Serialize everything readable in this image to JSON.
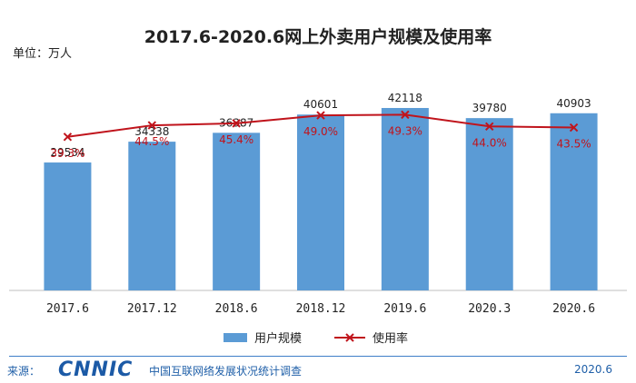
{
  "chart_data": {
    "type": "bar",
    "title": "2017.6-2020.6网上外卖用户规模及使用率",
    "unit_label": "单位：万人",
    "categories": [
      "2017.6",
      "2017.12",
      "2018.6",
      "2018.12",
      "2019.6",
      "2020.3",
      "2020.6"
    ],
    "series": [
      {
        "name": "用户规模",
        "type": "bar",
        "color": "#5b9bd5",
        "values": [
          29534,
          34338,
          36387,
          40601,
          42118,
          39780,
          40903
        ]
      },
      {
        "name": "使用率",
        "type": "line",
        "color": "#c0141c",
        "marker": "x",
        "values": [
          39.3,
          44.5,
          45.4,
          49.0,
          49.3,
          44.0,
          43.5
        ],
        "labels": [
          "39.3%",
          "44.5%",
          "45.4%",
          "49.0%",
          "49.3%",
          "44.0%",
          "43.5%"
        ]
      }
    ],
    "bar_ylim": [
      0,
      44000
    ],
    "line_ylim": [
      -30,
      56
    ],
    "legend_position": "bottom",
    "grid": false
  },
  "footer": {
    "source_label": "来源：",
    "logo_text": "CNNIC",
    "report_name": "中国互联网络发展状况统计调查",
    "date": "2020.6"
  }
}
